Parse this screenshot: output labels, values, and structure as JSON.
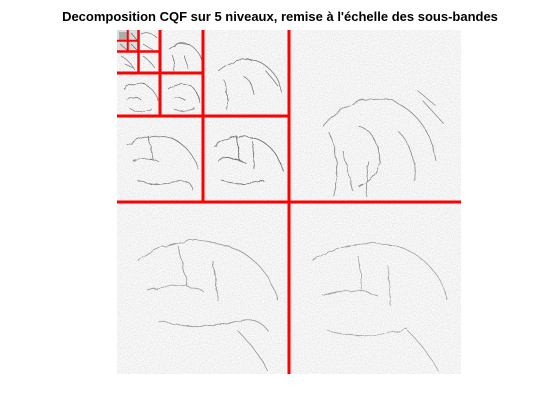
{
  "figure": {
    "title": "Decomposition CQF sur 5 niveaux, remise à l'échelle des sous-bandes"
  },
  "decomposition": {
    "levels": 5,
    "grid_color": "#ff0000",
    "image_style": "grayscale wavelet detail coefficients (mostly white with dark edge structures)"
  }
}
